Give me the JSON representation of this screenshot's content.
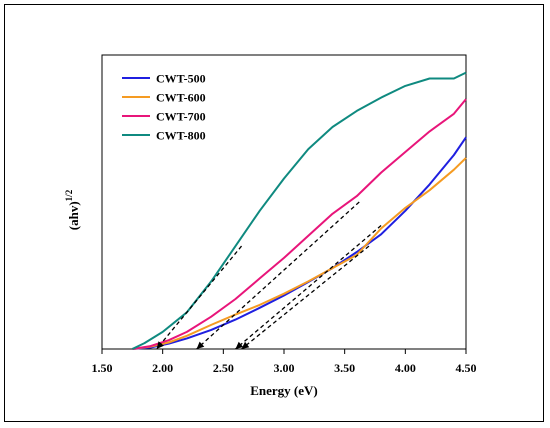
{
  "chart_data": {
    "type": "line",
    "xlabel": "Energy (eV)",
    "ylabel_base": "(ahv)",
    "ylabel_sup": "1/2",
    "xlim": [
      1.5,
      4.5
    ],
    "ylim": [
      0,
      1
    ],
    "xticks": [
      "1.50",
      "2.00",
      "2.50",
      "3.00",
      "3.50",
      "4.00",
      "4.50"
    ],
    "legend_position": "top-left",
    "grid": false,
    "series": [
      {
        "name": "CWT-500",
        "color": "#1f1fe0",
        "x": [
          1.75,
          1.9,
          2.05,
          2.2,
          2.4,
          2.6,
          2.8,
          3.0,
          3.2,
          3.4,
          3.6,
          3.8,
          4.0,
          4.2,
          4.4,
          4.5
        ],
        "y": [
          0.0,
          0.005,
          0.018,
          0.036,
          0.065,
          0.1,
          0.14,
          0.182,
          0.228,
          0.275,
          0.33,
          0.39,
          0.47,
          0.56,
          0.66,
          0.72
        ]
      },
      {
        "name": "CWT-600",
        "color": "#f59b22",
        "x": [
          1.75,
          1.9,
          2.05,
          2.2,
          2.4,
          2.6,
          2.8,
          3.0,
          3.2,
          3.4,
          3.6,
          3.8,
          4.0,
          4.2,
          4.4,
          4.5
        ],
        "y": [
          0.0,
          0.008,
          0.022,
          0.045,
          0.082,
          0.117,
          0.15,
          0.188,
          0.23,
          0.275,
          0.32,
          0.41,
          0.48,
          0.54,
          0.61,
          0.65
        ]
      },
      {
        "name": "CWT-700",
        "color": "#e8157a",
        "x": [
          1.75,
          1.9,
          2.05,
          2.2,
          2.4,
          2.6,
          2.8,
          3.0,
          3.2,
          3.4,
          3.6,
          3.8,
          4.0,
          4.2,
          4.4,
          4.5
        ],
        "y": [
          0.0,
          0.01,
          0.03,
          0.058,
          0.11,
          0.17,
          0.24,
          0.31,
          0.385,
          0.46,
          0.52,
          0.6,
          0.67,
          0.74,
          0.8,
          0.85
        ]
      },
      {
        "name": "CWT-800",
        "color": "#0f8a80",
        "x": [
          1.75,
          1.85,
          2.0,
          2.2,
          2.4,
          2.6,
          2.8,
          3.0,
          3.2,
          3.4,
          3.6,
          3.8,
          4.0,
          4.2,
          4.4,
          4.5
        ],
        "y": [
          0.0,
          0.02,
          0.058,
          0.125,
          0.23,
          0.35,
          0.47,
          0.58,
          0.68,
          0.755,
          0.81,
          0.855,
          0.895,
          0.92,
          0.92,
          0.94
        ]
      }
    ],
    "tangent_lines": [
      {
        "color": "#000000",
        "x": [
          2.65,
          1.95
        ],
        "y": [
          0.35,
          0.0
        ]
      },
      {
        "color": "#000000",
        "x": [
          3.62,
          2.28
        ],
        "y": [
          0.5,
          0.0
        ]
      },
      {
        "color": "#000000",
        "x": [
          3.8,
          2.6
        ],
        "y": [
          0.42,
          0.0
        ]
      },
      {
        "color": "#000000",
        "x": [
          3.7,
          2.65
        ],
        "y": [
          0.35,
          0.0
        ]
      }
    ]
  }
}
